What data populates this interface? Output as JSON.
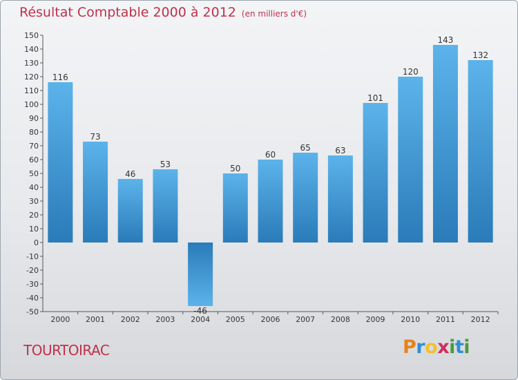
{
  "title": "Résultat Comptable 2000 à 2012",
  "subtitle": "(en milliers d'€)",
  "city": "TOURTOIRAC",
  "logo": {
    "letters": [
      "P",
      "r",
      "o",
      "x",
      "i",
      "t",
      "i"
    ],
    "colors": [
      "#e8821a",
      "#2e8fd3",
      "#f2c12e",
      "#d02c5a",
      "#4a9a3c",
      "#2e8fd3",
      "#4a9a3c"
    ]
  },
  "colors": {
    "title": "#c0304a",
    "bar_light": "#5cb3ea",
    "bar_dark": "#2a7bb9"
  },
  "chart_data": {
    "type": "bar",
    "title": "Résultat Comptable 2000 à 2012",
    "ylabel": "en milliers d'€",
    "xlabel": "",
    "categories": [
      "2000",
      "2001",
      "2002",
      "2003",
      "2004",
      "2005",
      "2006",
      "2007",
      "2008",
      "2009",
      "2010",
      "2011",
      "2012"
    ],
    "values": [
      116,
      73,
      46,
      53,
      -46,
      50,
      60,
      65,
      63,
      101,
      120,
      143,
      132
    ],
    "ylim": [
      -50,
      150
    ],
    "ytick_step": 10,
    "grid": false
  }
}
